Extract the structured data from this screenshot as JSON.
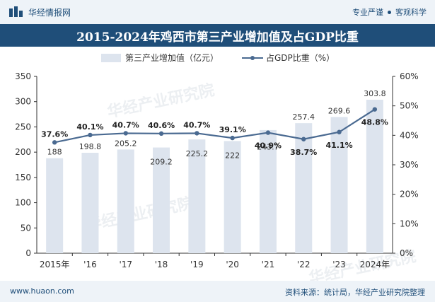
{
  "header": {
    "brand": "华经情报网",
    "tagline_left": "专业严谨",
    "tagline_right": "客观科学"
  },
  "title": "2015-2024年鸡西市第三产业增加值及占GDP比重",
  "footer": {
    "site": "www.huaon.com",
    "source": "资料来源：统计局，华经产业研究院整理"
  },
  "watermarks": [
    "华经产业研究院",
    "华经产业研究院",
    "华经产业研究院"
  ],
  "colors": {
    "brand": "#1f4e79",
    "bar": "#dde4ee",
    "line": "#4a6a91"
  },
  "chart_data": {
    "type": "bar",
    "categories": [
      "2015年",
      "'16",
      "'17",
      "'18",
      "'19",
      "'20",
      "'21",
      "'22",
      "'23",
      "2024年"
    ],
    "series": [
      {
        "name": "第三产业增加值（亿元）",
        "type": "bar",
        "axis": "left",
        "values": [
          188,
          198.8,
          205.2,
          209.2,
          225.2,
          222,
          243.7,
          257.4,
          269.6,
          303.8
        ],
        "labels": [
          "188",
          "198.8",
          "205.2",
          "209.2",
          "225.2",
          "222",
          "243.7",
          "257.4",
          "269.6",
          "303.8"
        ]
      },
      {
        "name": "占GDP比重（%）",
        "type": "line",
        "axis": "right",
        "values": [
          37.6,
          40.1,
          40.7,
          40.6,
          40.7,
          39.1,
          40.9,
          38.7,
          41.1,
          48.8
        ],
        "labels": [
          "37.6%",
          "40.1%",
          "40.7%",
          "40.6%",
          "40.7%",
          "39.1%",
          "40.9%",
          "38.7%",
          "41.1%",
          "48.8%"
        ]
      }
    ],
    "y_left": {
      "min": 0,
      "max": 350,
      "ticks": [
        "0",
        "50",
        "100",
        "150",
        "200",
        "250",
        "300",
        "350"
      ]
    },
    "y_right": {
      "min": 0,
      "max": 60,
      "ticks": [
        "0%",
        "10%",
        "20%",
        "30%",
        "40%",
        "50%",
        "60%"
      ]
    },
    "legend": "top-center",
    "grid": false
  }
}
